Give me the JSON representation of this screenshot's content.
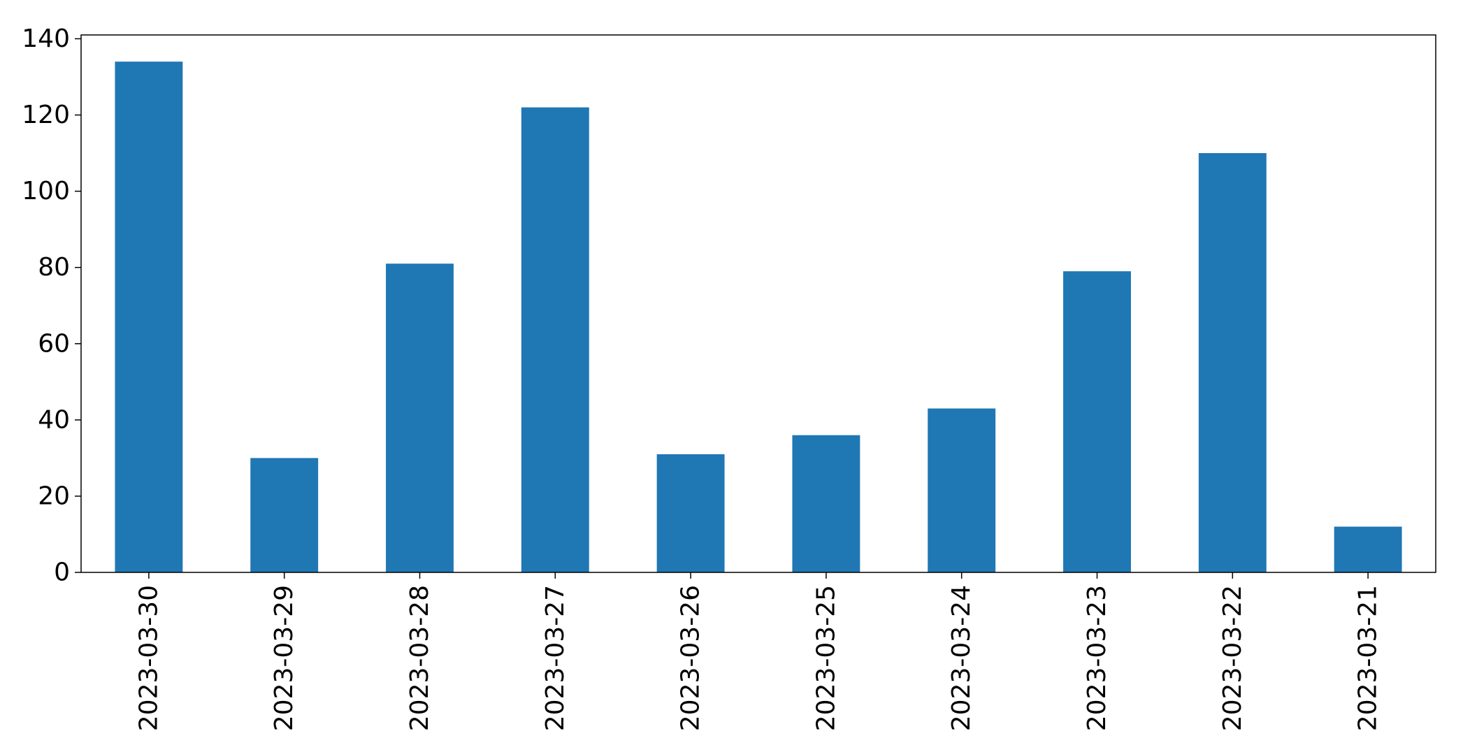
{
  "chart_data": {
    "type": "bar",
    "title": "",
    "xlabel": "",
    "ylabel": "",
    "categories": [
      "2023-03-30",
      "2023-03-29",
      "2023-03-28",
      "2023-03-27",
      "2023-03-26",
      "2023-03-25",
      "2023-03-24",
      "2023-03-23",
      "2023-03-22",
      "2023-03-21"
    ],
    "values": [
      134,
      30,
      81,
      122,
      31,
      36,
      43,
      79,
      110,
      12
    ],
    "ylim": [
      0,
      141
    ],
    "yticks": [
      0,
      20,
      40,
      60,
      80,
      100,
      120,
      140
    ],
    "grid": false,
    "legend": "none",
    "bar_color": "#1f77b4"
  }
}
